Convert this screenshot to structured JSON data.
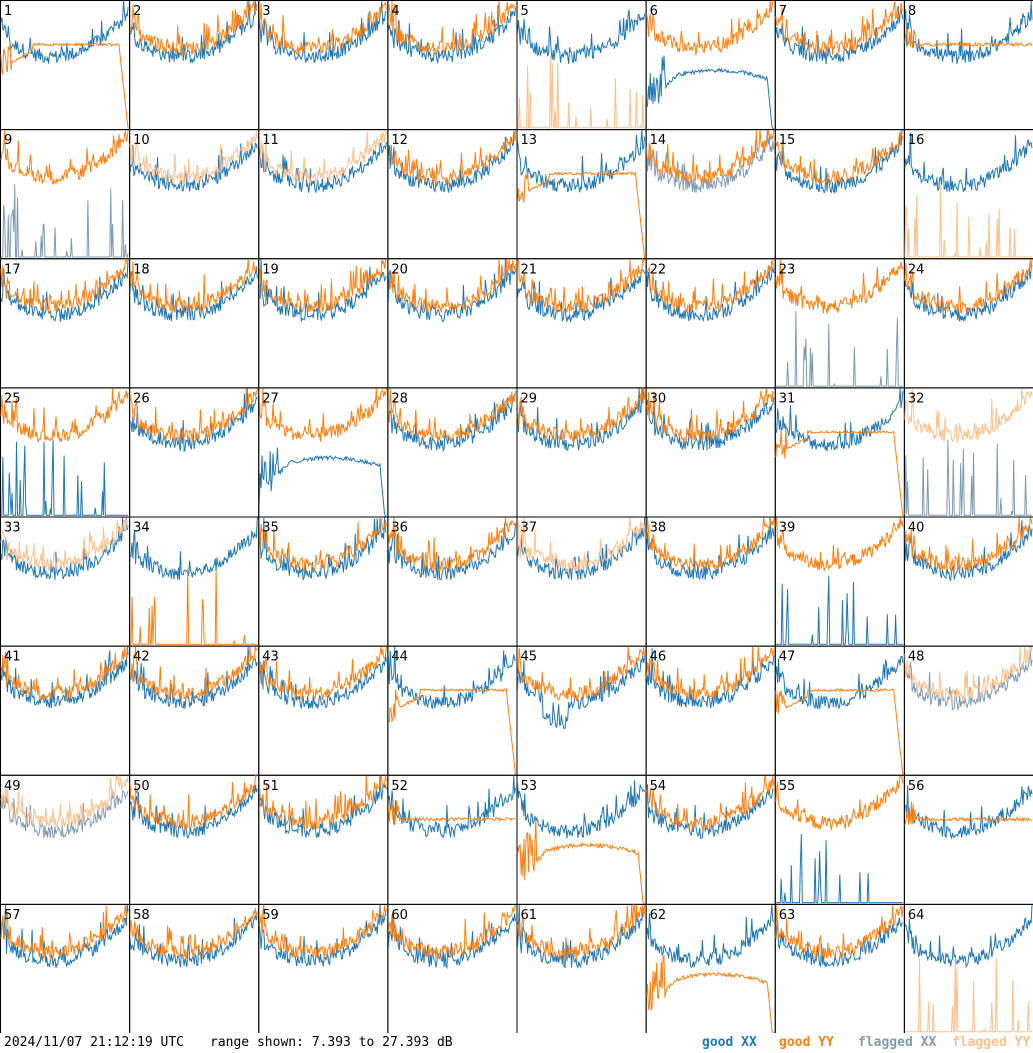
{
  "chart_data": {
    "type": "line",
    "layout": "8x8 small multiples",
    "panel_labels": [
      "1",
      "2",
      "3",
      "4",
      "5",
      "6",
      "7",
      "8",
      "9",
      "10",
      "11",
      "12",
      "13",
      "14",
      "15",
      "16",
      "17",
      "18",
      "19",
      "20",
      "21",
      "22",
      "23",
      "24",
      "25",
      "26",
      "27",
      "28",
      "29",
      "30",
      "31",
      "32",
      "33",
      "34",
      "35",
      "36",
      "37",
      "38",
      "39",
      "40",
      "41",
      "42",
      "43",
      "44",
      "45",
      "46",
      "47",
      "48",
      "49",
      "50",
      "51",
      "52",
      "53",
      "54",
      "55",
      "56",
      "57",
      "58",
      "59",
      "60",
      "61",
      "62",
      "63",
      "64"
    ],
    "ylim": [
      7.393,
      27.393
    ],
    "y_unit": "dB",
    "grid": false,
    "legend_position": "bottom-right",
    "panels": {
      "1": {
        "xx": "good",
        "yy": "good",
        "yy_shape": "dip-drop"
      },
      "5": {
        "xx": "good",
        "yy": "flagged",
        "yy_shape": "spikes"
      },
      "6": {
        "xx": "good",
        "yy": "good",
        "xx_shape": "low-drop"
      },
      "8": {
        "xx": "good",
        "yy": "good",
        "yy_shape": "flat"
      },
      "9": {
        "xx": "flagged",
        "yy": "good",
        "xx_shape": "spikes"
      },
      "10": {
        "xx": "good",
        "yy": "flagged"
      },
      "11": {
        "xx": "good",
        "yy": "flagged"
      },
      "13": {
        "xx": "good",
        "yy": "good",
        "yy_shape": "dip-drop"
      },
      "14": {
        "xx": "flagged",
        "yy": "good"
      },
      "16": {
        "xx": "good",
        "yy": "flagged",
        "yy_shape": "spikes"
      },
      "23": {
        "xx": "flagged",
        "yy": "good",
        "xx_shape": "spikes"
      },
      "25": {
        "xx": "good",
        "yy": "good",
        "xx_shape": "spikes"
      },
      "27": {
        "xx": "good",
        "yy": "good",
        "xx_shape": "low-drop"
      },
      "31": {
        "xx": "good",
        "yy": "good",
        "yy_shape": "dip-drop"
      },
      "32": {
        "xx": "flagged",
        "yy": "flagged",
        "xx_shape": "spikes"
      },
      "33": {
        "xx": "good",
        "yy": "flagged"
      },
      "34": {
        "xx": "good",
        "yy": "good",
        "yy_shape": "spikes"
      },
      "37": {
        "xx": "good",
        "yy": "flagged"
      },
      "39": {
        "xx": "good",
        "yy": "good",
        "xx_shape": "spikes"
      },
      "44": {
        "xx": "good",
        "yy": "good",
        "yy_shape": "dip-drop"
      },
      "45": {
        "xx": "good",
        "yy": "good",
        "xx_shape": "dip"
      },
      "47": {
        "xx": "good",
        "yy": "good",
        "yy_shape": "dip-drop"
      },
      "48": {
        "xx": "flagged",
        "yy": "flagged"
      },
      "49": {
        "xx": "flagged",
        "yy": "flagged"
      },
      "52": {
        "xx": "good",
        "yy": "good",
        "yy_shape": "flat"
      },
      "53": {
        "xx": "good",
        "yy": "good",
        "yy_shape": "low-drop"
      },
      "55": {
        "xx": "good",
        "yy": "good",
        "xx_shape": "spikes"
      },
      "56": {
        "xx": "good",
        "yy": "good",
        "yy_shape": "flat"
      },
      "62": {
        "xx": "good",
        "yy": "good",
        "yy_shape": "low-drop"
      },
      "64": {
        "xx": "good",
        "yy": "flagged",
        "yy_shape": "spikes"
      }
    },
    "series_colors": {
      "good_xx": "#1f77b4",
      "good_yy": "#ff7f0e",
      "flagged_xx": "#7f9bb3",
      "flagged_yy": "#ffbf8a"
    }
  },
  "footer": {
    "timestamp": "2024/11/07 21:12:19 UTC",
    "range": "range shown: 7.393 to 27.393 dB"
  },
  "legend": {
    "good_xx": "good XX",
    "good_yy": "good YY",
    "flagged_xx": "flagged XX",
    "flagged_yy": "flagged YY"
  }
}
